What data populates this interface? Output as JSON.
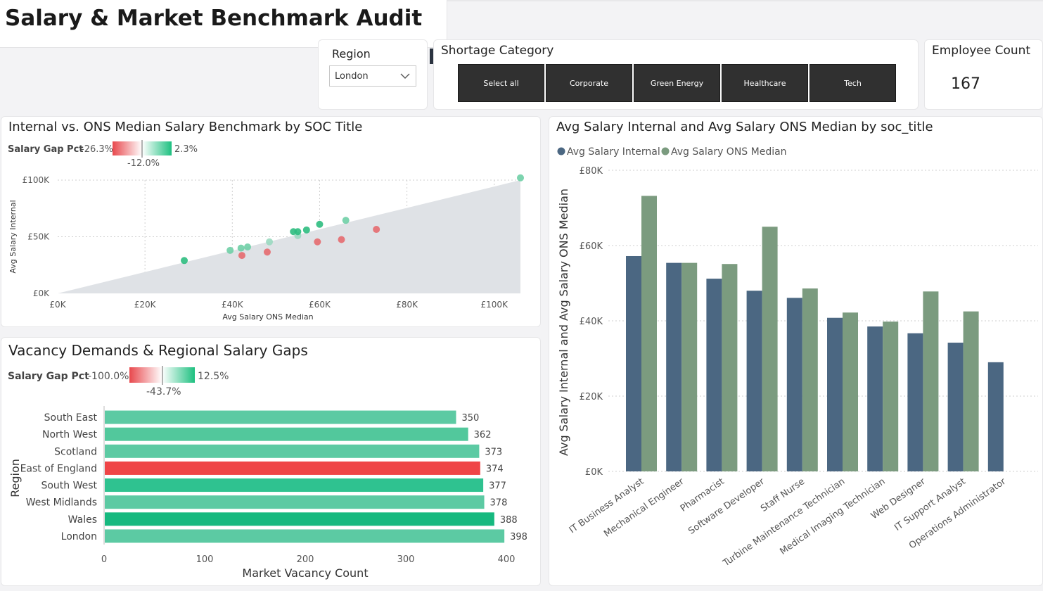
{
  "page_title": "Salary & Market Benchmark Audit",
  "region_slicer": {
    "title": "Region",
    "selected": "London"
  },
  "shortage_slicer": {
    "title": "Shortage Category",
    "options": [
      "Select all",
      "Corporate",
      "Green Energy",
      "Healthcare",
      "Tech"
    ]
  },
  "kpi": {
    "label": "Employee Count",
    "value": "167"
  },
  "colors": {
    "internal": "#4b6782",
    "ons": "#7b9b7f",
    "gap_neg": "#e8484d",
    "gap_pos": "#1ec080",
    "band": "#dfe2e6"
  },
  "chart_data": [
    {
      "type": "scatter",
      "title": "Internal vs. ONS Median Salary Benchmark by SOC Title",
      "xlabel": "Avg Salary ONS Median",
      "ylabel": "Avg Salary Internal",
      "xlim": [
        0,
        106000
      ],
      "ylim": [
        0,
        100000
      ],
      "x_ticks": [
        "£0K",
        "£20K",
        "£40K",
        "£60K",
        "£80K",
        "£100K"
      ],
      "y_ticks": [
        "£0K",
        "£50K",
        "£100K"
      ],
      "grid": true,
      "reference_band": "area under y = x",
      "color_scale": {
        "label": "Salary Gap Pct",
        "min": "-26.3%",
        "mid": "-12.0%",
        "max": "2.3%"
      },
      "points": [
        {
          "x": 29000,
          "y": 29000,
          "gap": 0
        },
        {
          "x": 39500,
          "y": 38000,
          "gap": -3
        },
        {
          "x": 42000,
          "y": 40000,
          "gap": -4
        },
        {
          "x": 42200,
          "y": 33500,
          "gap": -20
        },
        {
          "x": 43500,
          "y": 41000,
          "gap": -5
        },
        {
          "x": 48000,
          "y": 36500,
          "gap": -24
        },
        {
          "x": 48500,
          "y": 45500,
          "gap": -6
        },
        {
          "x": 54000,
          "y": 54500,
          "gap": 1
        },
        {
          "x": 55000,
          "y": 51000,
          "gap": -7
        },
        {
          "x": 55000,
          "y": 54500,
          "gap": 0
        },
        {
          "x": 57000,
          "y": 56000,
          "gap": -1
        },
        {
          "x": 59500,
          "y": 45500,
          "gap": -23
        },
        {
          "x": 60000,
          "y": 61000,
          "gap": 2
        },
        {
          "x": 65000,
          "y": 47500,
          "gap": -26
        },
        {
          "x": 66000,
          "y": 64500,
          "gap": -2
        },
        {
          "x": 73000,
          "y": 56500,
          "gap": -22
        },
        {
          "x": 106000,
          "y": 102000,
          "gap": -3
        }
      ]
    },
    {
      "type": "bar",
      "orientation": "horizontal",
      "title": "Vacancy Demands & Regional Salary Gaps",
      "xlabel": "Market Vacancy Count",
      "ylabel": "Region",
      "xlim": [
        0,
        400
      ],
      "x_ticks": [
        0,
        100,
        200,
        300,
        400
      ],
      "color_scale": {
        "label": "Salary Gap Pct",
        "min": "-100.0%",
        "mid": "-43.7%",
        "max": "12.5%"
      },
      "categories": [
        "South East",
        "North West",
        "Scotland",
        "East of England",
        "South West",
        "West Midlands",
        "Wales",
        "London"
      ],
      "values": [
        350,
        362,
        373,
        374,
        377,
        378,
        388,
        398
      ],
      "bar_colors": [
        "#5ccaa3",
        "#52c89c",
        "#5ccaa3",
        "#ef4547",
        "#2fc290",
        "#5ccaa3",
        "#16b97f",
        "#5ccaa3"
      ]
    },
    {
      "type": "bar",
      "title": "Avg Salary Internal and Avg Salary ONS Median by soc_title",
      "ylabel": "Avg Salary Internal and Avg Salary ONS Median",
      "ylim": [
        0,
        80000
      ],
      "y_ticks": [
        "£0K",
        "£20K",
        "£40K",
        "£60K",
        "£80K"
      ],
      "legend": "top-left",
      "categories": [
        "IT Business Analyst",
        "Mechanical Engineer",
        "Pharmacist",
        "Software Developer",
        "Staff Nurse",
        "Turbine Maintenance Technician",
        "Medical Imaging Technician",
        "Web Designer",
        "IT Support Analyst",
        "Operations Administrator"
      ],
      "series": [
        {
          "name": "Avg Salary Internal",
          "values": [
            57200,
            55400,
            51200,
            48000,
            46100,
            40800,
            38500,
            36700,
            34200,
            29000
          ]
        },
        {
          "name": "Avg Salary ONS Median",
          "values": [
            73200,
            55400,
            55100,
            65000,
            48600,
            42200,
            39800,
            47800,
            42500,
            null
          ]
        }
      ]
    }
  ]
}
